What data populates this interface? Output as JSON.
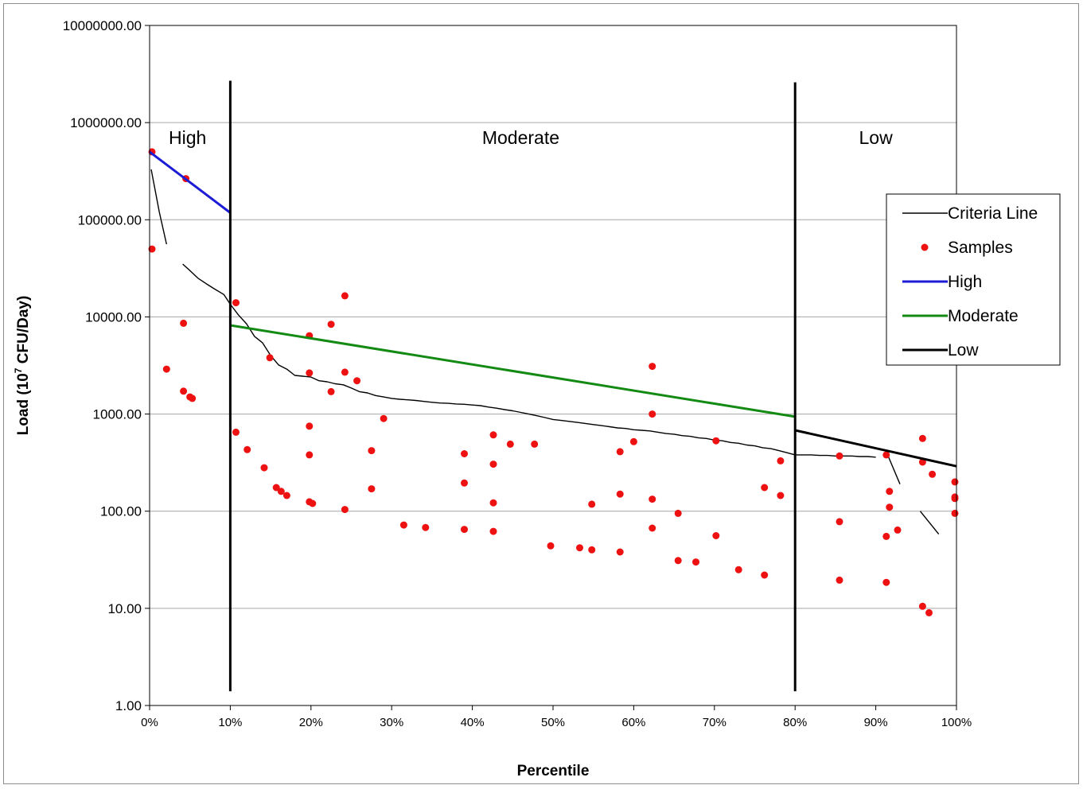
{
  "chart_data": {
    "type": "scatter",
    "title": "",
    "xlabel": "Percentile",
    "ylabel_main": "Load (10",
    "ylabel_sup": "7",
    "ylabel_rest": " CFU/Day)",
    "ylabel": "Load (10^7 CFU/Day)",
    "x_scale": "linear",
    "y_scale": "log",
    "xlim": [
      0,
      1
    ],
    "ylim": [
      1,
      10000000
    ],
    "grid": "horizontal major gridlines",
    "legend_position": "right",
    "x_ticks": [
      0,
      0.1,
      0.2,
      0.3,
      0.4,
      0.5,
      0.6,
      0.7,
      0.8,
      0.9,
      1.0
    ],
    "x_tick_labels": [
      "0%",
      "10%",
      "20%",
      "30%",
      "40%",
      "50%",
      "60%",
      "70%",
      "80%",
      "90%",
      "100%"
    ],
    "y_ticks": [
      1,
      10,
      100,
      1000,
      10000,
      100000,
      1000000,
      10000000
    ],
    "y_tick_labels": [
      "1.00",
      "10.00",
      "100.00",
      "1000.00",
      "10000.00",
      "100000.00",
      "1000000.00",
      "10000000.00"
    ],
    "zones": [
      {
        "label": "High",
        "x": 0.047,
        "y": 600000
      },
      {
        "label": "Moderate",
        "x": 0.46,
        "y": 600000
      },
      {
        "label": "Low",
        "x": 0.9,
        "y": 600000
      }
    ],
    "zone_dividers": [
      {
        "x": 0.1,
        "y_from": 1.4,
        "y_to": 2700000
      },
      {
        "x": 0.8,
        "y_from": 1.4,
        "y_to": 2600000
      }
    ],
    "legend": [
      "Criteria Line",
      "Samples",
      "High",
      "Moderate",
      "Low"
    ],
    "series": [
      {
        "name": "Criteria Line",
        "kind": "line",
        "color": "#000000",
        "segments": [
          [
            [
              0.002,
              330000
            ],
            [
              0.012,
              120000
            ],
            [
              0.021,
              56000
            ]
          ],
          [
            [
              0.041,
              35000
            ],
            [
              0.05,
              30000
            ],
            [
              0.06,
              25000
            ],
            [
              0.07,
              22000
            ],
            [
              0.08,
              19500
            ],
            [
              0.092,
              17000
            ],
            [
              0.1,
              13500
            ],
            [
              0.11,
              10500
            ],
            [
              0.12,
              8500
            ],
            [
              0.13,
              6300
            ],
            [
              0.14,
              5400
            ],
            [
              0.15,
              4000
            ],
            [
              0.16,
              3200
            ],
            [
              0.17,
              2900
            ],
            [
              0.18,
              2500
            ],
            [
              0.19,
              2450
            ],
            [
              0.2,
              2400
            ],
            [
              0.21,
              2200
            ],
            [
              0.22,
              2150
            ],
            [
              0.23,
              2050
            ],
            [
              0.24,
              2000
            ],
            [
              0.25,
              1850
            ],
            [
              0.26,
              1700
            ],
            [
              0.27,
              1650
            ],
            [
              0.28,
              1550
            ],
            [
              0.29,
              1500
            ],
            [
              0.3,
              1450
            ],
            [
              0.31,
              1420
            ],
            [
              0.32,
              1400
            ],
            [
              0.33,
              1380
            ],
            [
              0.34,
              1350
            ],
            [
              0.35,
              1320
            ],
            [
              0.36,
              1300
            ],
            [
              0.37,
              1290
            ],
            [
              0.38,
              1270
            ],
            [
              0.39,
              1260
            ],
            [
              0.4,
              1240
            ],
            [
              0.41,
              1220
            ],
            [
              0.42,
              1180
            ],
            [
              0.43,
              1150
            ],
            [
              0.44,
              1110
            ],
            [
              0.45,
              1080
            ],
            [
              0.46,
              1040
            ],
            [
              0.47,
              1000
            ],
            [
              0.48,
              960
            ],
            [
              0.49,
              920
            ],
            [
              0.5,
              880
            ],
            [
              0.51,
              860
            ],
            [
              0.52,
              840
            ],
            [
              0.53,
              820
            ],
            [
              0.54,
              800
            ],
            [
              0.55,
              780
            ],
            [
              0.56,
              760
            ],
            [
              0.57,
              740
            ],
            [
              0.58,
              720
            ],
            [
              0.59,
              710
            ],
            [
              0.6,
              690
            ],
            [
              0.61,
              680
            ],
            [
              0.62,
              670
            ],
            [
              0.63,
              650
            ],
            [
              0.64,
              630
            ],
            [
              0.65,
              620
            ],
            [
              0.66,
              600
            ],
            [
              0.67,
              590
            ],
            [
              0.68,
              570
            ],
            [
              0.69,
              560
            ],
            [
              0.7,
              540
            ],
            [
              0.71,
              530
            ],
            [
              0.72,
              510
            ],
            [
              0.73,
              500
            ],
            [
              0.74,
              480
            ],
            [
              0.75,
              470
            ],
            [
              0.76,
              450
            ],
            [
              0.77,
              440
            ],
            [
              0.78,
              420
            ],
            [
              0.79,
              400
            ],
            [
              0.8,
              380
            ],
            [
              0.81,
              380
            ],
            [
              0.82,
              380
            ],
            [
              0.83,
              375
            ],
            [
              0.84,
              375
            ],
            [
              0.85,
              370
            ],
            [
              0.86,
              370
            ],
            [
              0.87,
              370
            ],
            [
              0.88,
              365
            ],
            [
              0.89,
              365
            ],
            [
              0.9,
              360
            ]
          ],
          [
            [
              0.915,
              375
            ],
            [
              0.93,
              190
            ]
          ],
          [
            [
              0.955,
              100
            ],
            [
              0.978,
              58
            ]
          ]
        ]
      },
      {
        "name": "Samples",
        "kind": "points",
        "color": "#ee1111",
        "points": [
          [
            0.003,
            500000
          ],
          [
            0.003,
            50000
          ],
          [
            0.045,
            265000
          ],
          [
            0.021,
            2900
          ],
          [
            0.042,
            8600
          ],
          [
            0.042,
            1720
          ],
          [
            0.05,
            1500
          ],
          [
            0.053,
            1450
          ],
          [
            0.107,
            14000
          ],
          [
            0.107,
            650
          ],
          [
            0.121,
            430
          ],
          [
            0.142,
            280
          ],
          [
            0.149,
            3800
          ],
          [
            0.157,
            175
          ],
          [
            0.163,
            160
          ],
          [
            0.17,
            145
          ],
          [
            0.198,
            6400
          ],
          [
            0.198,
            2650
          ],
          [
            0.198,
            750
          ],
          [
            0.198,
            380
          ],
          [
            0.198,
            125
          ],
          [
            0.202,
            120
          ],
          [
            0.225,
            8400
          ],
          [
            0.225,
            1700
          ],
          [
            0.242,
            16500
          ],
          [
            0.242,
            2700
          ],
          [
            0.242,
            104
          ],
          [
            0.257,
            2200
          ],
          [
            0.275,
            420
          ],
          [
            0.275,
            170
          ],
          [
            0.29,
            900
          ],
          [
            0.315,
            72
          ],
          [
            0.342,
            68
          ],
          [
            0.39,
            390
          ],
          [
            0.39,
            195
          ],
          [
            0.39,
            65
          ],
          [
            0.426,
            610
          ],
          [
            0.426,
            305
          ],
          [
            0.426,
            122
          ],
          [
            0.426,
            62
          ],
          [
            0.447,
            490
          ],
          [
            0.477,
            490
          ],
          [
            0.497,
            44
          ],
          [
            0.533,
            42
          ],
          [
            0.548,
            118
          ],
          [
            0.548,
            40
          ],
          [
            0.583,
            410
          ],
          [
            0.583,
            150
          ],
          [
            0.583,
            38
          ],
          [
            0.6,
            520
          ],
          [
            0.623,
            3100
          ],
          [
            0.623,
            1000
          ],
          [
            0.623,
            133
          ],
          [
            0.623,
            67
          ],
          [
            0.655,
            95
          ],
          [
            0.655,
            31
          ],
          [
            0.677,
            30
          ],
          [
            0.702,
            530
          ],
          [
            0.702,
            56
          ],
          [
            0.73,
            25
          ],
          [
            0.762,
            175
          ],
          [
            0.762,
            22
          ],
          [
            0.782,
            330
          ],
          [
            0.782,
            145
          ],
          [
            0.855,
            370
          ],
          [
            0.855,
            78
          ],
          [
            0.855,
            19.5
          ],
          [
            0.913,
            380
          ],
          [
            0.913,
            55
          ],
          [
            0.913,
            18.5
          ],
          [
            0.917,
            160
          ],
          [
            0.917,
            110
          ],
          [
            0.927,
            64
          ],
          [
            0.958,
            560
          ],
          [
            0.958,
            320
          ],
          [
            0.958,
            10.5
          ],
          [
            0.966,
            9
          ],
          [
            0.97,
            240
          ],
          [
            0.998,
            200
          ],
          [
            0.998,
            140
          ],
          [
            0.998,
            135
          ],
          [
            0.998,
            95
          ]
        ]
      },
      {
        "name": "High",
        "kind": "line",
        "color": "#1c1cd6",
        "segments": [
          [
            [
              0.0,
              500000
            ],
            [
              0.1,
              118000
            ]
          ]
        ]
      },
      {
        "name": "Moderate",
        "kind": "line",
        "color": "#138a13",
        "segments": [
          [
            [
              0.1,
              8200
            ],
            [
              0.8,
              940
            ]
          ]
        ]
      },
      {
        "name": "Low",
        "kind": "line",
        "color": "#000000",
        "segments": [
          [
            [
              0.8,
              680
            ],
            [
              1.0,
              290
            ]
          ]
        ]
      }
    ]
  }
}
